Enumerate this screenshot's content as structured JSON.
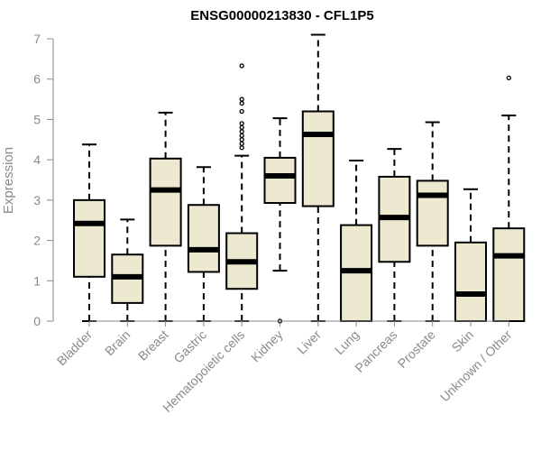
{
  "chart_data": {
    "type": "box",
    "title": "ENSG00000213830 - CFL1P5",
    "xlabel": "",
    "ylabel": "Expression",
    "ylim": [
      0,
      7
    ],
    "yticks": [
      0,
      1,
      2,
      3,
      4,
      5,
      6,
      7
    ],
    "categories": [
      "Bladder",
      "Brain",
      "Breast",
      "Gastric",
      "Hematopoietic cells",
      "Kidney",
      "Liver",
      "Lung",
      "Pancreas",
      "Prostate",
      "Skin",
      "Unknown / Other"
    ],
    "boxes": [
      {
        "min": 0.0,
        "q1": 1.1,
        "median": 2.42,
        "q3": 3.0,
        "max": 4.38,
        "outliers": []
      },
      {
        "min": 0.0,
        "q1": 0.45,
        "median": 1.1,
        "q3": 1.65,
        "max": 2.52,
        "outliers": []
      },
      {
        "min": 0.0,
        "q1": 1.87,
        "median": 3.25,
        "q3": 4.03,
        "max": 5.17,
        "outliers": []
      },
      {
        "min": 0.0,
        "q1": 1.22,
        "median": 1.77,
        "q3": 2.88,
        "max": 3.82,
        "outliers": []
      },
      {
        "min": 0.0,
        "q1": 0.8,
        "median": 1.47,
        "q3": 2.18,
        "max": 4.1,
        "outliers": [
          4.3,
          4.4,
          4.5,
          4.6,
          4.7,
          4.8,
          4.9,
          5.2,
          5.4,
          5.5,
          6.33
        ]
      },
      {
        "min": 1.25,
        "q1": 2.93,
        "median": 3.6,
        "q3": 4.05,
        "max": 5.03,
        "outliers": [
          0.0
        ]
      },
      {
        "min": 0.0,
        "q1": 2.85,
        "median": 4.63,
        "q3": 5.2,
        "max": 7.1,
        "outliers": []
      },
      {
        "min": 0.0,
        "q1": 0.0,
        "median": 1.25,
        "q3": 2.38,
        "max": 3.98,
        "outliers": []
      },
      {
        "min": 0.0,
        "q1": 1.47,
        "median": 2.57,
        "q3": 3.58,
        "max": 4.27,
        "outliers": []
      },
      {
        "min": 0.0,
        "q1": 1.87,
        "median": 3.12,
        "q3": 3.48,
        "max": 4.93,
        "outliers": []
      },
      {
        "min": 0.0,
        "q1": 0.0,
        "median": 0.67,
        "q3": 1.95,
        "max": 3.27,
        "outliers": []
      },
      {
        "min": 0.0,
        "q1": 0.0,
        "median": 1.62,
        "q3": 2.3,
        "max": 5.1,
        "outliers": [
          6.03
        ]
      }
    ],
    "box_fill": "#ede8d0",
    "stroke": "#000000",
    "axis_text_color": "#8a8a8a"
  }
}
